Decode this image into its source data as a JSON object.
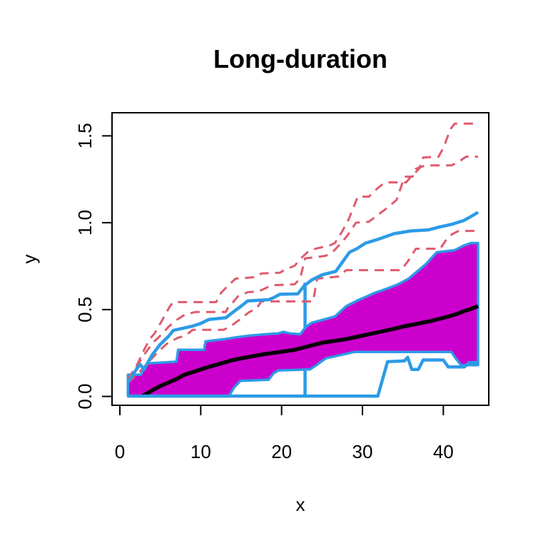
{
  "chart_data": {
    "type": "line",
    "title": "Long-duration",
    "xlabel": "x",
    "ylabel": "y",
    "xlim": [
      -0.97,
      45.62
    ],
    "ylim": [
      -0.051,
      1.633
    ],
    "x_ticks": [
      0,
      10,
      20,
      30,
      40
    ],
    "x_tick_labels": [
      "0",
      "10",
      "20",
      "30",
      "40"
    ],
    "y_ticks": [
      0.0,
      0.5,
      1.0,
      1.5
    ],
    "y_tick_labels": [
      "0.0",
      "0.5",
      "1.0",
      "1.5"
    ],
    "grid": false,
    "legend": "none",
    "colors": {
      "band_fill": "#CC00CC",
      "envelope": "#2D9BE6",
      "outlier": "#DF5B6E",
      "median": "#000000",
      "axis": "#000000",
      "background": "#FFFFFF"
    },
    "band": {
      "name": "central-50-percent-region",
      "upper": [
        [
          1,
          0.125
        ],
        [
          2.6,
          0.125
        ],
        [
          3,
          0.165
        ],
        [
          3.5,
          0.19
        ],
        [
          7,
          0.2
        ],
        [
          7.2,
          0.268
        ],
        [
          10.4,
          0.268
        ],
        [
          10.6,
          0.317
        ],
        [
          13,
          0.33
        ],
        [
          14.3,
          0.34
        ],
        [
          16,
          0.35
        ],
        [
          18,
          0.358
        ],
        [
          19.6,
          0.363
        ],
        [
          20.2,
          0.372
        ],
        [
          21,
          0.363
        ],
        [
          22.3,
          0.358
        ],
        [
          23,
          0.4
        ],
        [
          23.7,
          0.424
        ],
        [
          25,
          0.44
        ],
        [
          26.6,
          0.46
        ],
        [
          28,
          0.52
        ],
        [
          29.5,
          0.555
        ],
        [
          31.5,
          0.596
        ],
        [
          33,
          0.62
        ],
        [
          34.4,
          0.645
        ],
        [
          35.7,
          0.678
        ],
        [
          37.8,
          0.76
        ],
        [
          39.2,
          0.83
        ],
        [
          41.4,
          0.842
        ],
        [
          42.5,
          0.868
        ],
        [
          43.4,
          0.883
        ],
        [
          44.3,
          0.883
        ]
      ],
      "lower": [
        [
          1,
          0.002
        ],
        [
          13.5,
          0.002
        ],
        [
          14.1,
          0.05
        ],
        [
          14.9,
          0.09
        ],
        [
          18.4,
          0.096
        ],
        [
          19,
          0.133
        ],
        [
          19.6,
          0.15
        ],
        [
          23.5,
          0.155
        ],
        [
          24.3,
          0.18
        ],
        [
          25.5,
          0.22
        ],
        [
          26.5,
          0.23
        ],
        [
          29,
          0.256
        ],
        [
          41,
          0.256
        ],
        [
          41.6,
          0.215
        ],
        [
          42.2,
          0.18
        ],
        [
          44.3,
          0.18
        ]
      ]
    },
    "vertical_bar": {
      "x": 22.9,
      "y0": 0.002,
      "y1": 0.655
    },
    "series": [
      {
        "name": "outlier-1",
        "style": "dashed",
        "color": "#DF5B6E",
        "width": 3,
        "points": [
          [
            1,
            0.1
          ],
          [
            2.1,
            0.18
          ],
          [
            3.1,
            0.277
          ],
          [
            3.7,
            0.33
          ],
          [
            4.3,
            0.363
          ],
          [
            5,
            0.42
          ],
          [
            5.6,
            0.47
          ],
          [
            6.2,
            0.52
          ],
          [
            6.6,
            0.543
          ],
          [
            11.9,
            0.543
          ],
          [
            12.5,
            0.596
          ],
          [
            13.1,
            0.625
          ],
          [
            14.3,
            0.678
          ],
          [
            16.9,
            0.687
          ],
          [
            17.5,
            0.708
          ],
          [
            19.8,
            0.712
          ],
          [
            20.4,
            0.73
          ],
          [
            21.6,
            0.752
          ],
          [
            22.5,
            0.8
          ],
          [
            23.3,
            0.834
          ],
          [
            24.2,
            0.85
          ],
          [
            26,
            0.87
          ],
          [
            26.6,
            0.883
          ],
          [
            27.5,
            0.95
          ],
          [
            28.3,
            1.02
          ],
          [
            29,
            1.1
          ],
          [
            29.4,
            1.15
          ],
          [
            30.8,
            1.15
          ],
          [
            31.9,
            1.2
          ],
          [
            32.8,
            1.232
          ],
          [
            35.4,
            1.232
          ],
          [
            36,
            1.265
          ],
          [
            37,
            1.31
          ],
          [
            37.5,
            1.375
          ],
          [
            39.4,
            1.38
          ],
          [
            40,
            1.43
          ],
          [
            40.9,
            1.54
          ],
          [
            41.4,
            1.57
          ],
          [
            44.3,
            1.57
          ]
        ]
      },
      {
        "name": "outlier-2",
        "style": "dashed",
        "color": "#DF5B6E",
        "width": 3,
        "points": [
          [
            1,
            0.09
          ],
          [
            2.8,
            0.227
          ],
          [
            4.1,
            0.31
          ],
          [
            4.9,
            0.345
          ],
          [
            6,
            0.4
          ],
          [
            7,
            0.44
          ],
          [
            8,
            0.47
          ],
          [
            9.3,
            0.486
          ],
          [
            13.1,
            0.486
          ],
          [
            13.4,
            0.515
          ],
          [
            14,
            0.543
          ],
          [
            14.6,
            0.576
          ],
          [
            15.8,
            0.6
          ],
          [
            17.2,
            0.605
          ],
          [
            18.1,
            0.625
          ],
          [
            18.7,
            0.64
          ],
          [
            21.6,
            0.645
          ],
          [
            22.3,
            0.678
          ],
          [
            22.9,
            0.795
          ],
          [
            24,
            0.8
          ],
          [
            25.5,
            0.81
          ],
          [
            26.5,
            0.84
          ],
          [
            27.3,
            0.88
          ],
          [
            28.2,
            0.93
          ],
          [
            29.2,
            1.0
          ],
          [
            30.8,
            1.006
          ],
          [
            32.8,
            1.076
          ],
          [
            34.2,
            1.13
          ],
          [
            34.8,
            1.21
          ],
          [
            35.2,
            1.265
          ],
          [
            36.2,
            1.265
          ],
          [
            36.6,
            1.31
          ],
          [
            37.8,
            1.33
          ],
          [
            41,
            1.33
          ],
          [
            41.9,
            1.35
          ],
          [
            42.8,
            1.38
          ],
          [
            44.3,
            1.38
          ]
        ]
      },
      {
        "name": "outlier-3",
        "style": "dashed",
        "color": "#DF5B6E",
        "width": 3,
        "points": [
          [
            1,
            0.08
          ],
          [
            2,
            0.12
          ],
          [
            3,
            0.17
          ],
          [
            4,
            0.22
          ],
          [
            5,
            0.27
          ],
          [
            6,
            0.31
          ],
          [
            7.2,
            0.338
          ],
          [
            8.1,
            0.35
          ],
          [
            9,
            0.383
          ],
          [
            12.8,
            0.383
          ],
          [
            13.7,
            0.404
          ],
          [
            14.9,
            0.445
          ],
          [
            16,
            0.486
          ],
          [
            16.9,
            0.506
          ],
          [
            17.5,
            0.547
          ],
          [
            23.9,
            0.547
          ],
          [
            24.4,
            0.678
          ],
          [
            27,
            0.69
          ],
          [
            28,
            0.727
          ],
          [
            34.8,
            0.727
          ],
          [
            35.8,
            0.79
          ],
          [
            36.6,
            0.85
          ],
          [
            39.6,
            0.85
          ],
          [
            40.7,
            0.924
          ],
          [
            41.9,
            0.953
          ],
          [
            44.3,
            0.953
          ]
        ]
      },
      {
        "name": "median",
        "style": "solid",
        "color": "#000000",
        "width": 5.5,
        "points": [
          [
            2.8,
            0.002
          ],
          [
            4,
            0.035
          ],
          [
            5,
            0.06
          ],
          [
            6,
            0.08
          ],
          [
            7,
            0.1
          ],
          [
            8,
            0.125
          ],
          [
            9,
            0.14
          ],
          [
            10,
            0.155
          ],
          [
            11,
            0.17
          ],
          [
            12.5,
            0.19
          ],
          [
            14,
            0.21
          ],
          [
            16,
            0.228
          ],
          [
            17.8,
            0.243
          ],
          [
            19.8,
            0.256
          ],
          [
            21.6,
            0.268
          ],
          [
            23.4,
            0.29
          ],
          [
            25.1,
            0.31
          ],
          [
            26.6,
            0.32
          ],
          [
            28,
            0.33
          ],
          [
            29,
            0.34
          ],
          [
            30.5,
            0.355
          ],
          [
            32,
            0.37
          ],
          [
            33.5,
            0.385
          ],
          [
            35.3,
            0.405
          ],
          [
            37,
            0.42
          ],
          [
            38.5,
            0.435
          ],
          [
            40,
            0.452
          ],
          [
            41.5,
            0.472
          ],
          [
            42.5,
            0.49
          ],
          [
            43.5,
            0.505
          ],
          [
            44.3,
            0.52
          ]
        ]
      },
      {
        "name": "upper-envelope",
        "style": "solid",
        "color": "#2D9BE6",
        "width": 4.5,
        "points": [
          [
            1,
            0.08
          ],
          [
            1.8,
            0.14
          ],
          [
            2.5,
            0.185
          ],
          [
            3,
            0.155
          ],
          [
            3.4,
            0.19
          ],
          [
            4,
            0.24
          ],
          [
            5,
            0.3
          ],
          [
            6.1,
            0.35
          ],
          [
            6.6,
            0.38
          ],
          [
            9,
            0.405
          ],
          [
            10,
            0.42
          ],
          [
            11,
            0.443
          ],
          [
            13.1,
            0.453
          ],
          [
            14,
            0.486
          ],
          [
            15,
            0.52
          ],
          [
            15.8,
            0.55
          ],
          [
            18.4,
            0.557
          ],
          [
            19,
            0.568
          ],
          [
            19.8,
            0.588
          ],
          [
            22,
            0.59
          ],
          [
            22.8,
            0.637
          ],
          [
            23.7,
            0.67
          ],
          [
            25,
            0.7
          ],
          [
            26.7,
            0.72
          ],
          [
            28.4,
            0.83
          ],
          [
            29.3,
            0.85
          ],
          [
            30.4,
            0.883
          ],
          [
            31.9,
            0.904
          ],
          [
            33.9,
            0.937
          ],
          [
            36,
            0.953
          ],
          [
            38.1,
            0.958
          ],
          [
            39.5,
            0.975
          ],
          [
            41,
            0.99
          ],
          [
            42.5,
            1.012
          ],
          [
            43.4,
            1.035
          ],
          [
            44.3,
            1.06
          ]
        ]
      },
      {
        "name": "lower-envelope",
        "style": "solid",
        "color": "#2D9BE6",
        "width": 4.5,
        "points": [
          [
            1,
            0.002
          ],
          [
            31.9,
            0.002
          ],
          [
            33.1,
            0.2
          ],
          [
            35.2,
            0.205
          ],
          [
            35.6,
            0.225
          ],
          [
            36.1,
            0.155
          ],
          [
            36.9,
            0.155
          ],
          [
            37.5,
            0.21
          ],
          [
            40,
            0.21
          ],
          [
            40.6,
            0.17
          ],
          [
            42.6,
            0.17
          ],
          [
            43.2,
            0.195
          ],
          [
            44.3,
            0.195
          ]
        ]
      }
    ]
  }
}
